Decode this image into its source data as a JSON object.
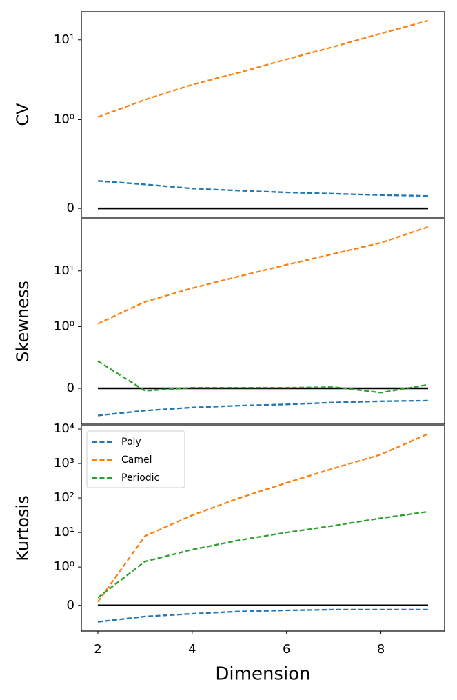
{
  "chart_data": [
    {
      "type": "line",
      "ylabel": "CV",
      "yscale": "symlog",
      "x": [
        2,
        3,
        4,
        5,
        6,
        7,
        8,
        9
      ],
      "xlim": [
        1.65,
        9.35
      ],
      "ylim": [
        -0.1,
        22.5
      ],
      "yticks": [
        0,
        {
          "value": 1,
          "label": "10⁰"
        },
        {
          "value": 10,
          "label": "10¹"
        }
      ],
      "hline": 0,
      "hline_color": "#000000",
      "series": [
        {
          "name": "Poly",
          "color": "#1f77b4",
          "values": [
            0.31,
            0.27,
            0.225,
            0.2,
            0.18,
            0.165,
            0.15,
            0.14
          ]
        },
        {
          "name": "Camel",
          "color": "#ff7f0e",
          "values": [
            1.08,
            1.78,
            2.75,
            3.9,
            5.7,
            8.2,
            12,
            17.4
          ]
        }
      ]
    },
    {
      "type": "line",
      "ylabel": "Skewness",
      "yscale": "symlog",
      "x": [
        2,
        3,
        4,
        5,
        6,
        7,
        8,
        9
      ],
      "xlim": [
        1.65,
        9.35
      ],
      "ylim": [
        -0.58,
        87
      ],
      "yticks": [
        0,
        {
          "value": 1,
          "label": "10⁰"
        },
        {
          "value": 10,
          "label": "10¹"
        }
      ],
      "hline": 0,
      "hline_color": "#000000",
      "series": [
        {
          "name": "Poly",
          "color": "#1f77b4",
          "values": [
            -0.44,
            -0.36,
            -0.31,
            -0.28,
            -0.26,
            -0.23,
            -0.21,
            -0.2
          ]
        },
        {
          "name": "Camel",
          "color": "#ff7f0e",
          "values": [
            1.12,
            2.78,
            4.9,
            8,
            12.9,
            20.3,
            32,
            61.7
          ]
        },
        {
          "name": "Periodic",
          "color": "#2ca02c",
          "values": [
            0.44,
            -0.04,
            0.01,
            0.01,
            0.01,
            0.02,
            -0.07,
            0.06
          ]
        }
      ]
    },
    {
      "type": "line",
      "ylabel": "Kurtosis",
      "xlabel": "Dimension",
      "yscale": "symlog",
      "x": [
        2,
        3,
        4,
        5,
        6,
        7,
        8,
        9
      ],
      "xlim": [
        1.65,
        9.35
      ],
      "xticks": [
        2,
        4,
        6,
        8
      ],
      "ylim": [
        -0.67,
        12600
      ],
      "yticks": [
        0,
        {
          "value": 1,
          "label": "10⁰"
        },
        {
          "value": 10,
          "label": "10¹"
        },
        {
          "value": 100,
          "label": "10²"
        },
        {
          "value": 1000,
          "label": "10³"
        },
        {
          "value": 10000,
          "label": "10⁴"
        }
      ],
      "hline": 0,
      "hline_color": "#000000",
      "legend": "upper left",
      "series": [
        {
          "name": "Poly",
          "color": "#1f77b4",
          "values": [
            -0.43,
            -0.29,
            -0.22,
            -0.16,
            -0.13,
            -0.11,
            -0.11,
            -0.11
          ]
        },
        {
          "name": "Camel",
          "color": "#ff7f0e",
          "values": [
            0.09,
            7.9,
            31.6,
            100,
            275,
            724,
            1820,
            7240
          ]
        },
        {
          "name": "Periodic",
          "color": "#2ca02c",
          "values": [
            0.2,
            1.45,
            3.2,
            6,
            10,
            15.8,
            26,
            40
          ]
        }
      ]
    }
  ]
}
